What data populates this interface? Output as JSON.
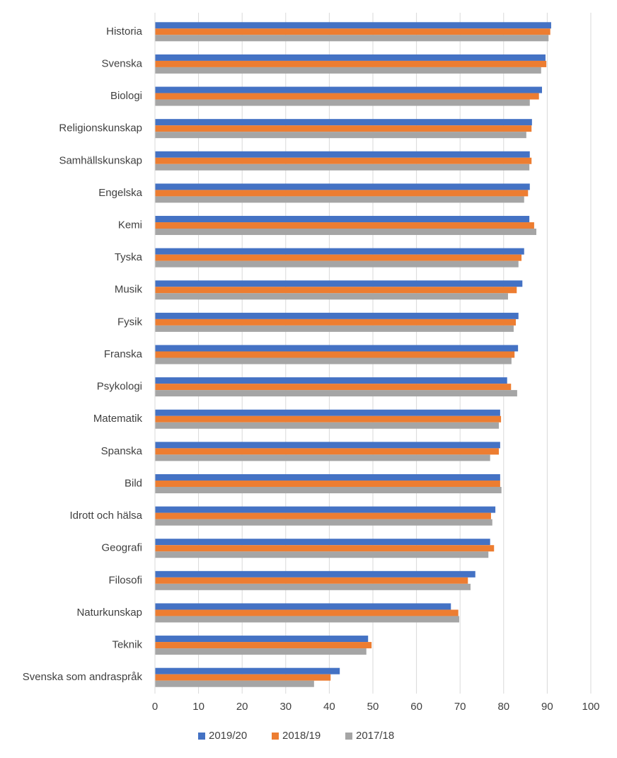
{
  "chart_data": {
    "type": "bar",
    "orientation": "horizontal",
    "categories": [
      "Historia",
      "Svenska",
      "Biologi",
      "Religionskunskap",
      "Samhällskunskap",
      "Engelska",
      "Kemi",
      "Tyska",
      "Musik",
      "Fysik",
      "Franska",
      "Psykologi",
      "Matematik",
      "Spanska",
      "Bild",
      "Idrott och hälsa",
      "Geografi",
      "Filosofi",
      "Naturkunskap",
      "Teknik",
      "Svenska som andraspråk"
    ],
    "series": [
      {
        "name": "2019/20",
        "color": "#4472c4",
        "values": [
          90.9,
          89.6,
          88.8,
          86.5,
          86.0,
          86.0,
          85.9,
          84.7,
          84.3,
          83.4,
          83.3,
          80.8,
          79.2,
          79.2,
          79.2,
          78.1,
          76.9,
          73.5,
          67.9,
          48.9,
          42.4
        ]
      },
      {
        "name": "2018/19",
        "color": "#ed7d31",
        "values": [
          90.7,
          89.8,
          88.1,
          86.4,
          86.4,
          85.6,
          87.0,
          84.1,
          83.0,
          82.8,
          82.5,
          81.7,
          79.4,
          78.9,
          79.2,
          77.1,
          77.8,
          71.8,
          69.6,
          49.7,
          40.3
        ]
      },
      {
        "name": "2017/18",
        "color": "#a5a5a5",
        "values": [
          90.3,
          88.6,
          86.0,
          85.2,
          85.9,
          84.7,
          87.5,
          83.4,
          81.0,
          82.3,
          81.8,
          83.1,
          78.9,
          76.9,
          79.5,
          77.4,
          76.5,
          72.4,
          69.8,
          48.5,
          36.5
        ]
      }
    ],
    "xlim": [
      0,
      100
    ],
    "xticks": [
      0,
      10,
      20,
      30,
      40,
      50,
      60,
      70,
      80,
      90,
      100
    ],
    "grid": true,
    "legend": "bottom"
  }
}
